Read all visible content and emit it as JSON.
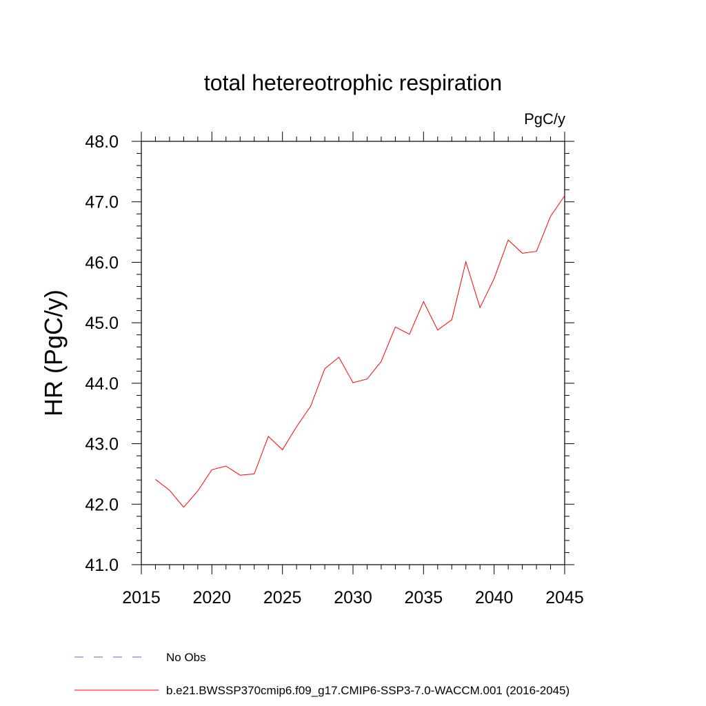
{
  "chart_data": {
    "type": "line",
    "title": "total hetereotrophic respiration",
    "units_label": "PgC/y",
    "xlabel": "",
    "ylabel": "HR  (PgC/y)",
    "xlim": [
      2015,
      2045
    ],
    "ylim": [
      41.0,
      48.0
    ],
    "x_ticks": [
      2015,
      2020,
      2025,
      2030,
      2035,
      2040,
      2045
    ],
    "y_ticks": [
      "41.0",
      "42.0",
      "43.0",
      "44.0",
      "45.0",
      "46.0",
      "47.0",
      "48.0"
    ],
    "series": [
      {
        "name": "b.e21.BWSSP370cmip6.f09_g17.CMIP6-SSP3-7.0-WACCM.001 (2016-2045)",
        "color": "#ff0000",
        "x": [
          2016,
          2017,
          2018,
          2019,
          2020,
          2021,
          2022,
          2023,
          2024,
          2025,
          2026,
          2027,
          2028,
          2029,
          2030,
          2031,
          2032,
          2033,
          2034,
          2035,
          2036,
          2037,
          2038,
          2039,
          2040,
          2041,
          2042,
          2043,
          2044,
          2045
        ],
        "values": [
          42.41,
          42.23,
          41.95,
          42.22,
          42.57,
          42.63,
          42.48,
          42.5,
          43.12,
          42.9,
          43.28,
          43.62,
          44.24,
          44.43,
          44.01,
          44.07,
          44.36,
          44.93,
          44.81,
          45.35,
          44.88,
          45.05,
          46.01,
          45.25,
          45.73,
          46.37,
          46.15,
          46.18,
          46.76,
          47.1
        ]
      }
    ],
    "legend": {
      "placement": "bottom-left",
      "entries": [
        {
          "label": "No Obs",
          "style": "dashed",
          "color": "#6a5acd"
        },
        {
          "label": "b.e21.BWSSP370cmip6.f09_g17.CMIP6-SSP3-7.0-WACCM.001 (2016-2045)",
          "style": "solid",
          "color": "#ff0000"
        }
      ]
    }
  }
}
